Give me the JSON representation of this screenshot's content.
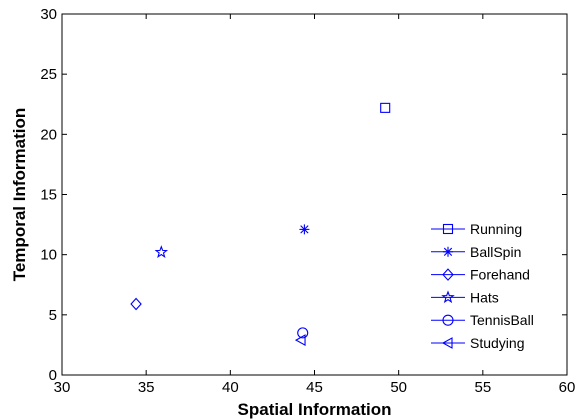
{
  "chart_data": {
    "type": "scatter",
    "title": "",
    "xlabel": "Spatial Information",
    "ylabel": "Temporal Information",
    "xlim": [
      30,
      60
    ],
    "ylim": [
      0,
      30
    ],
    "xticks": [
      30,
      35,
      40,
      45,
      50,
      55,
      60
    ],
    "yticks": [
      0,
      5,
      10,
      15,
      20,
      25,
      30
    ],
    "grid": false,
    "legend_position": "right",
    "marker_color": "#0000ff",
    "series": [
      {
        "name": "Running",
        "marker": "square",
        "x": 49.2,
        "y": 22.2
      },
      {
        "name": "BallSpin",
        "marker": "asterisk",
        "x": 44.4,
        "y": 12.1
      },
      {
        "name": "Forehand",
        "marker": "diamond",
        "x": 34.4,
        "y": 5.9
      },
      {
        "name": "Hats",
        "marker": "pentagram",
        "x": 35.9,
        "y": 10.2
      },
      {
        "name": "TennisBall",
        "marker": "circle",
        "x": 44.3,
        "y": 3.5
      },
      {
        "name": "Studying",
        "marker": "triangle-left",
        "x": 44.2,
        "y": 2.9
      }
    ]
  }
}
